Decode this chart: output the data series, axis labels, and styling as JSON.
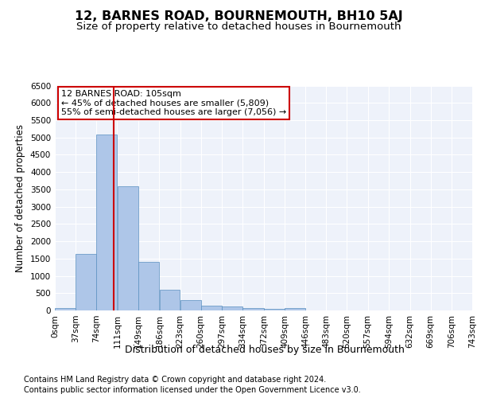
{
  "title": "12, BARNES ROAD, BOURNEMOUTH, BH10 5AJ",
  "subtitle": "Size of property relative to detached houses in Bournemouth",
  "xlabel": "Distribution of detached houses by size in Bournemouth",
  "ylabel": "Number of detached properties",
  "footer_line1": "Contains HM Land Registry data © Crown copyright and database right 2024.",
  "footer_line2": "Contains public sector information licensed under the Open Government Licence v3.0.",
  "property_label": "12 BARNES ROAD: 105sqm",
  "annotation_line1": "← 45% of detached houses are smaller (5,809)",
  "annotation_line2": "55% of semi-detached houses are larger (7,056) →",
  "property_size": 105,
  "bar_edges": [
    0,
    37,
    74,
    111,
    149,
    186,
    223,
    260,
    297,
    334,
    372,
    409,
    446,
    483,
    520,
    557,
    594,
    632,
    669,
    706,
    743
  ],
  "bar_heights": [
    75,
    1625,
    5075,
    3600,
    1410,
    590,
    290,
    145,
    105,
    70,
    55,
    65,
    0,
    0,
    0,
    0,
    0,
    0,
    0,
    0
  ],
  "bar_color": "#aec6e8",
  "bar_edge_color": "#5a8fc0",
  "vline_color": "#cc0000",
  "vline_x": 105,
  "annotation_box_color": "#cc0000",
  "ylim": [
    0,
    6500
  ],
  "xlim": [
    0,
    743
  ],
  "background_color": "#eef2fa",
  "grid_color": "#ffffff",
  "tick_label_fontsize": 7.5,
  "title_fontsize": 11.5,
  "subtitle_fontsize": 9.5,
  "ylabel_fontsize": 8.5,
  "xlabel_fontsize": 9,
  "footer_fontsize": 7,
  "annotation_fontsize": 8
}
